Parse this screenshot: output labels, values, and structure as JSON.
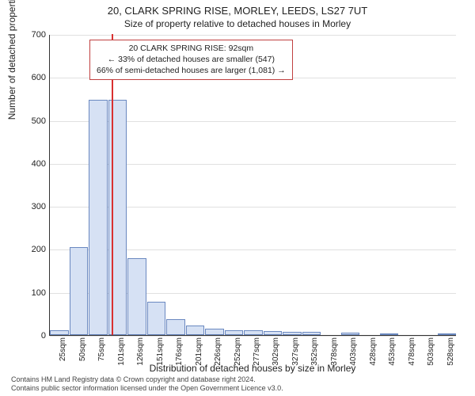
{
  "title_line1": "20, CLARK SPRING RISE, MORLEY, LEEDS, LS27 7UT",
  "title_line2": "Size of property relative to detached houses in Morley",
  "ylabel": "Number of detached properties",
  "xlabel": "Distribution of detached houses by size in Morley",
  "chart": {
    "type": "histogram",
    "ylim": [
      0,
      700
    ],
    "ytick_step": 100,
    "yticks": [
      0,
      100,
      200,
      300,
      400,
      500,
      600,
      700
    ],
    "grid_color": "#e0e0e0",
    "background_color": "#ffffff",
    "axis_color": "#333333",
    "bar_fill": "#d6e1f4",
    "bar_border": "#6a88c0",
    "marker_color": "#d93030",
    "marker_x_value": 92,
    "x_start": 25,
    "x_step": 25,
    "categories": [
      "25sqm",
      "50sqm",
      "75sqm",
      "101sqm",
      "126sqm",
      "151sqm",
      "176sqm",
      "201sqm",
      "226sqm",
      "252sqm",
      "277sqm",
      "302sqm",
      "327sqm",
      "352sqm",
      "378sqm",
      "403sqm",
      "428sqm",
      "453sqm",
      "478sqm",
      "503sqm",
      "528sqm"
    ],
    "values": [
      12,
      205,
      548,
      547,
      178,
      78,
      37,
      22,
      14,
      12,
      12,
      10,
      8,
      8,
      0,
      5,
      0,
      3,
      0,
      0,
      3
    ],
    "bar_width_ratio": 0.96,
    "label_fontsize": 12,
    "tick_fontsize": 11
  },
  "annotation": {
    "lines": [
      "20 CLARK SPRING RISE: 92sqm",
      "← 33% of detached houses are smaller (547)",
      "66% of semi-detached houses are larger (1,081) →"
    ],
    "border_color": "#c04040"
  },
  "footer": {
    "line1": "Contains HM Land Registry data © Crown copyright and database right 2024.",
    "line2": "Contains public sector information licensed under the Open Government Licence v3.0."
  }
}
